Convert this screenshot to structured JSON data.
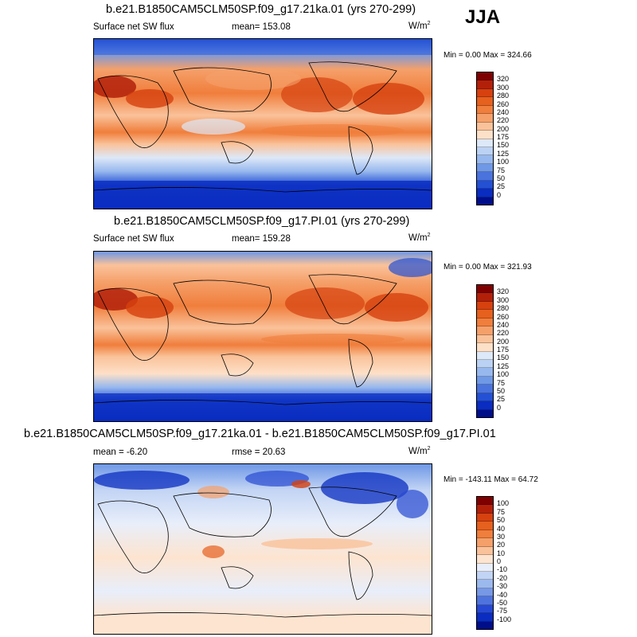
{
  "season": "JJA",
  "units_base": "W/m",
  "units_exp": "2",
  "panel1": {
    "title": "b.e21.B1850CAM5CLM50SP.f09_g17.21ka.01 (yrs 270-299)",
    "left_label": "Surface net SW flux",
    "mean_text": "mean= 153.08",
    "minmax_text": "Min =   0.00 Max = 324.66"
  },
  "panel2": {
    "title": "b.e21.B1850CAM5CLM50SP.f09_g17.PI.01 (yrs 270-299)",
    "left_label": "Surface net SW flux",
    "mean_text": "mean= 159.28",
    "minmax_text": "Min =   0.00 Max = 321.93"
  },
  "panel3": {
    "title": "b.e21.B1850CAM5CLM50SP.f09_g17.21ka.01 - b.e21.B1850CAM5CLM50SP.f09_g17.PI.01",
    "mean_text": "mean =  -6.20",
    "rmse_text": "rmse =  20.63",
    "minmax_text": "Min = -143.11 Max =  64.72"
  },
  "colorbar_abs": {
    "levels": [
      "320",
      "300",
      "280",
      "260",
      "240",
      "220",
      "200",
      "175",
      "150",
      "125",
      "100",
      "75",
      "50",
      "25",
      "0"
    ],
    "colors": [
      "#7f0000",
      "#b3200a",
      "#d6410f",
      "#e6601e",
      "#f07e3c",
      "#f5a06a",
      "#fac29a",
      "#fde0c8",
      "#dde8f8",
      "#bcd2f4",
      "#97b8ee",
      "#6f98e6",
      "#4a73dd",
      "#2450d4",
      "#0a2cc0",
      "#000e8a"
    ]
  },
  "colorbar_diff": {
    "levels": [
      "100",
      "75",
      "50",
      "40",
      "30",
      "20",
      "10",
      "0",
      "-10",
      "-20",
      "-30",
      "-40",
      "-50",
      "-75",
      "-100"
    ],
    "colors": [
      "#7f0000",
      "#b3200a",
      "#d6410f",
      "#e6601e",
      "#f07e3c",
      "#f5a06a",
      "#fac29a",
      "#fde4d0",
      "#e8eefa",
      "#c2d4f4",
      "#9cb9ee",
      "#7698e6",
      "#4f73dd",
      "#2648d2",
      "#0a2cc0",
      "#000e8a"
    ]
  }
}
